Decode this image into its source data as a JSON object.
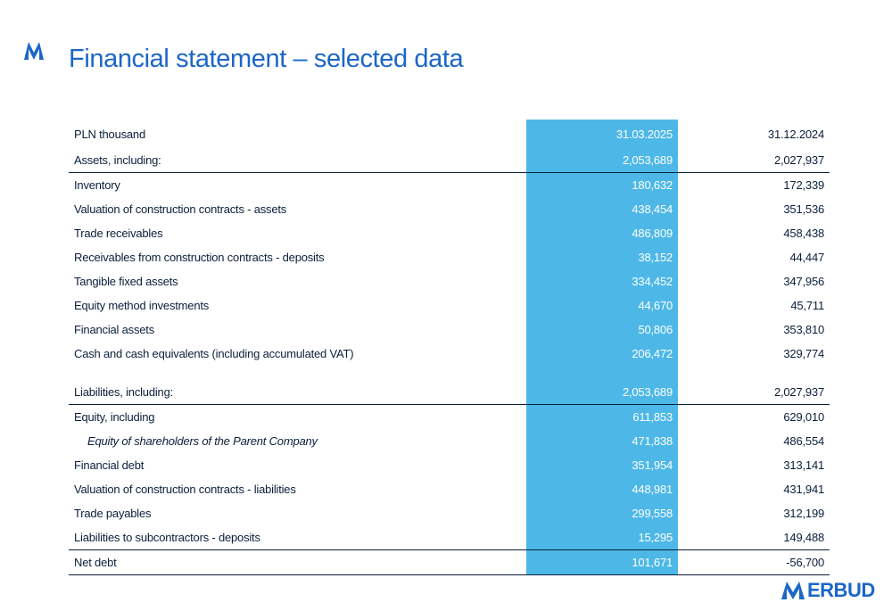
{
  "title": "Financial statement – selected data",
  "table": {
    "header": {
      "label": "PLN thousand",
      "col1": "31.03.2025",
      "col2": "31.12.2024"
    },
    "assets_total": {
      "label": "Assets, including:",
      "col1": "2,053,689",
      "col2": "2,027,937"
    },
    "assets": [
      {
        "label": "Inventory",
        "col1": "180,632",
        "col2": "172,339"
      },
      {
        "label": "Valuation of construction contracts - assets",
        "col1": "438,454",
        "col2": "351,536"
      },
      {
        "label": "Trade receivables",
        "col1": "486,809",
        "col2": "458,438"
      },
      {
        "label": "Receivables from construction contracts - deposits",
        "col1": "38,152",
        "col2": "44,447"
      },
      {
        "label": "Tangible fixed assets",
        "col1": "334,452",
        "col2": "347,956"
      },
      {
        "label": "Equity method investments",
        "col1": "44,670",
        "col2": "45,711"
      },
      {
        "label": "Financial assets",
        "col1": "50,806",
        "col2": "353,810"
      },
      {
        "label": "Cash and cash equivalents (including accumulated VAT)",
        "col1": "206,472",
        "col2": "329,774"
      }
    ],
    "liabilities_total": {
      "label": "Liabilities, including:",
      "col1": "2,053,689",
      "col2": "2,027,937"
    },
    "liabilities": [
      {
        "label": "Equity, including",
        "col1": "611,853",
        "col2": "629,010"
      },
      {
        "label": "Equity of shareholders of the Parent Company",
        "col1": "471,838",
        "col2": "486,554"
      },
      {
        "label": "Financial debt",
        "col1": "351,954",
        "col2": "313,141"
      },
      {
        "label": "Valuation of construction contracts - liabilities",
        "col1": "448,981",
        "col2": "431,941"
      },
      {
        "label": "Trade payables",
        "col1": "299,558",
        "col2": "312,199"
      },
      {
        "label": "Liabilities to subcontractors - deposits",
        "col1": "15,295",
        "col2": "149,488"
      }
    ],
    "net_debt": {
      "label": "Net debt",
      "col1": "101,671",
      "col2": "-56,700"
    }
  },
  "logo": {
    "text": "ERBUD"
  },
  "colors": {
    "title": "#1b66c9",
    "highlight": "#4db8e8",
    "text": "#0b1f3a",
    "rule": "#0b1f3a"
  },
  "icons": {
    "corner": "erbud-chevron-icon",
    "logo": "erbud-logo-icon"
  }
}
